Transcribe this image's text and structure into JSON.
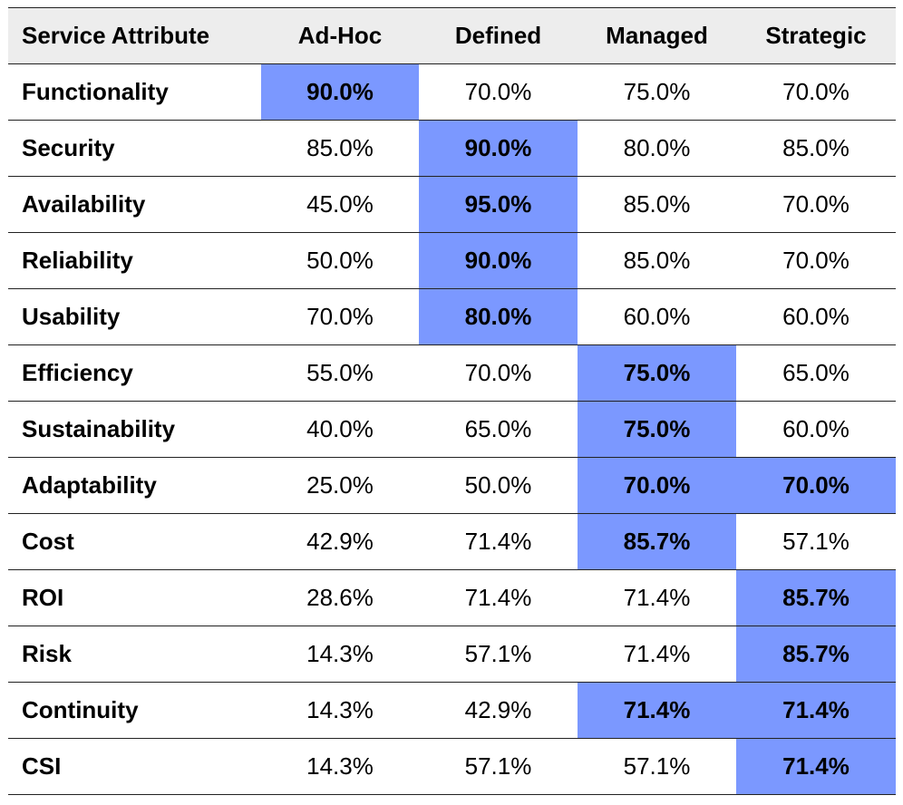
{
  "table": {
    "columns": [
      "Service Attribute",
      "Ad-Hoc",
      "Defined",
      "Managed",
      "Strategic"
    ],
    "rows": [
      {
        "attribute": "Functionality",
        "values": [
          "90.0%",
          "70.0%",
          "75.0%",
          "70.0%"
        ],
        "highlighted": [
          true,
          false,
          false,
          false
        ]
      },
      {
        "attribute": "Security",
        "values": [
          "85.0%",
          "90.0%",
          "80.0%",
          "85.0%"
        ],
        "highlighted": [
          false,
          true,
          false,
          false
        ]
      },
      {
        "attribute": "Availability",
        "values": [
          "45.0%",
          "95.0%",
          "85.0%",
          "70.0%"
        ],
        "highlighted": [
          false,
          true,
          false,
          false
        ]
      },
      {
        "attribute": "Reliability",
        "values": [
          "50.0%",
          "90.0%",
          "85.0%",
          "70.0%"
        ],
        "highlighted": [
          false,
          true,
          false,
          false
        ]
      },
      {
        "attribute": "Usability",
        "values": [
          "70.0%",
          "80.0%",
          "60.0%",
          "60.0%"
        ],
        "highlighted": [
          false,
          true,
          false,
          false
        ]
      },
      {
        "attribute": "Efficiency",
        "values": [
          "55.0%",
          "70.0%",
          "75.0%",
          "65.0%"
        ],
        "highlighted": [
          false,
          false,
          true,
          false
        ]
      },
      {
        "attribute": "Sustainability",
        "values": [
          "40.0%",
          "65.0%",
          "75.0%",
          "60.0%"
        ],
        "highlighted": [
          false,
          false,
          true,
          false
        ]
      },
      {
        "attribute": "Adaptability",
        "values": [
          "25.0%",
          "50.0%",
          "70.0%",
          "70.0%"
        ],
        "highlighted": [
          false,
          false,
          true,
          true
        ]
      },
      {
        "attribute": "Cost",
        "values": [
          "42.9%",
          "71.4%",
          "85.7%",
          "57.1%"
        ],
        "highlighted": [
          false,
          false,
          true,
          false
        ]
      },
      {
        "attribute": "ROI",
        "values": [
          "28.6%",
          "71.4%",
          "71.4%",
          "85.7%"
        ],
        "highlighted": [
          false,
          false,
          false,
          true
        ]
      },
      {
        "attribute": "Risk",
        "values": [
          "14.3%",
          "57.1%",
          "71.4%",
          "85.7%"
        ],
        "highlighted": [
          false,
          false,
          false,
          true
        ]
      },
      {
        "attribute": "Continuity",
        "values": [
          "14.3%",
          "42.9%",
          "71.4%",
          "71.4%"
        ],
        "highlighted": [
          false,
          false,
          true,
          true
        ]
      },
      {
        "attribute": "CSI",
        "values": [
          "14.3%",
          "57.1%",
          "57.1%",
          "71.4%"
        ],
        "highlighted": [
          false,
          false,
          false,
          true
        ]
      }
    ]
  },
  "colors": {
    "highlight": "#7b98ff",
    "header_background": "#ededed",
    "rule": "#222222"
  }
}
